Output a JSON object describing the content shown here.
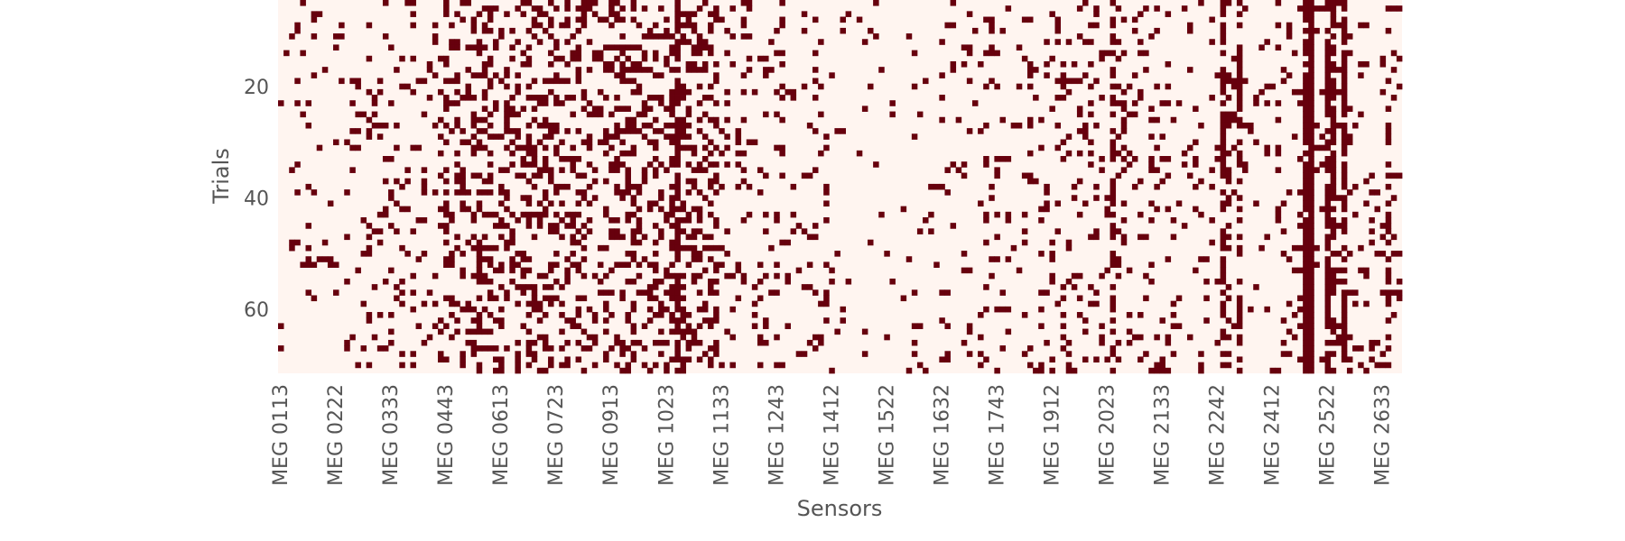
{
  "chart_data": {
    "type": "heatmap",
    "title": "",
    "xlabel": "Sensors",
    "ylabel": "Trials",
    "x_tick_labels": [
      "MEG 0113",
      "MEG 0222",
      "MEG 0333",
      "MEG 0443",
      "MEG 0613",
      "MEG 0723",
      "MEG 0913",
      "MEG 1023",
      "MEG 1133",
      "MEG 1243",
      "MEG 1412",
      "MEG 1522",
      "MEG 1632",
      "MEG 1743",
      "MEG 1912",
      "MEG 2023",
      "MEG 2133",
      "MEG 2242",
      "MEG 2412",
      "MEG 2522",
      "MEG 2633"
    ],
    "y_tick_values": [
      20,
      40,
      60
    ],
    "n_sensors": 204,
    "sensor_tick_step": 10,
    "trials_visible_range": [
      5,
      72
    ],
    "grid": false,
    "colors": {
      "off": "#fff5f0",
      "on": "#67000d"
    },
    "density_profile": [
      {
        "sensors": [
          0,
          15
        ],
        "p": 0.08
      },
      {
        "sensors": [
          15,
          30
        ],
        "p": 0.12
      },
      {
        "sensors": [
          30,
          60
        ],
        "p": 0.3
      },
      {
        "sensors": [
          60,
          80
        ],
        "p": 0.34
      },
      {
        "sensors": [
          80,
          100
        ],
        "p": 0.12
      },
      {
        "sensors": [
          100,
          120
        ],
        "p": 0.03
      },
      {
        "sensors": [
          120,
          140
        ],
        "p": 0.1
      },
      {
        "sensors": [
          140,
          160
        ],
        "p": 0.14
      },
      {
        "sensors": [
          160,
          180
        ],
        "p": 0.1
      },
      {
        "sensors": [
          180,
          204
        ],
        "p": 0.12
      }
    ],
    "dense_columns": [
      {
        "sensor": 72,
        "p": 0.85
      },
      {
        "sensor": 151,
        "p": 0.55
      },
      {
        "sensor": 171,
        "p": 0.6
      },
      {
        "sensor": 172,
        "p": 0.45
      },
      {
        "sensor": 174,
        "p": 0.6
      },
      {
        "sensor": 186,
        "p": 0.95
      },
      {
        "sensor": 187,
        "p": 1.0
      },
      {
        "sensor": 190,
        "p": 0.75
      },
      {
        "sensor": 191,
        "p": 0.7
      },
      {
        "sensor": 193,
        "p": 0.85
      },
      {
        "sensor": 201,
        "p": 0.35
      }
    ]
  }
}
